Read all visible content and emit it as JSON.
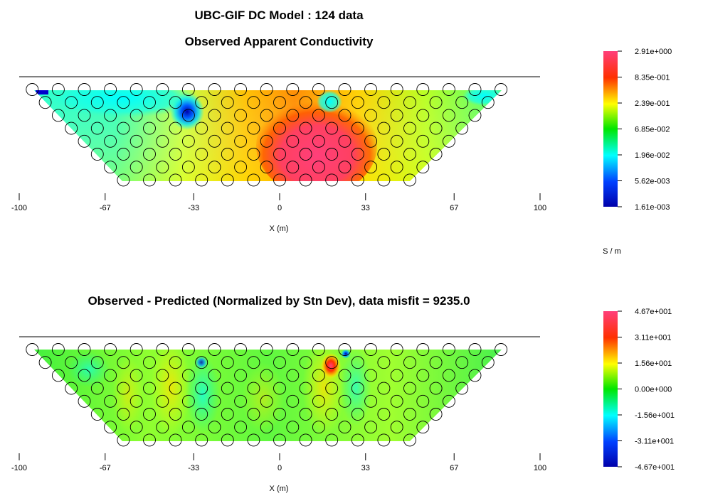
{
  "header": {
    "title": "UBC-GIF DC Model : 124 data"
  },
  "chart_data": [
    {
      "type": "heatmap",
      "title": "Observed Apparent Conductivity",
      "xlabel": "X (m)",
      "xlim": [
        -100,
        100
      ],
      "xticks": [
        -100,
        -67,
        -33,
        0,
        33,
        67,
        100
      ],
      "xtick_labels": [
        "-100",
        "-67",
        "-33",
        "0",
        "33",
        "67",
        "100"
      ],
      "electrodes_x": [
        -95,
        -85,
        -75,
        -65,
        -55,
        -45,
        -35,
        -25,
        -15,
        -5,
        5,
        15,
        25,
        35,
        45,
        55,
        65,
        75,
        85
      ],
      "background_value": "2.39e-001",
      "features": [
        {
          "name": "conductive-body",
          "x": [
            -5,
            35
          ],
          "value": "2.91e+000"
        },
        {
          "name": "resistive-left",
          "x": [
            -95,
            -55
          ],
          "value": "1.96e-002"
        },
        {
          "name": "resistive-anomaly",
          "x": [
            -35,
            -35
          ],
          "value": "1.61e-003"
        }
      ],
      "colorbar": {
        "labels": [
          "2.91e+000",
          "8.35e-001",
          "2.39e-001",
          "6.85e-002",
          "1.96e-002",
          "5.62e-003",
          "1.61e-003"
        ],
        "colors": [
          "#ff3f7a",
          "#ff3000",
          "#ffff00",
          "#00e600",
          "#00ffff",
          "#0040ff",
          "#0000aa"
        ],
        "unit": "S / m"
      }
    },
    {
      "type": "heatmap",
      "title": "Observed - Predicted (Normalized by Stn Dev), data misfit = 9235.0",
      "xlabel": "X (m)",
      "xlim": [
        -100,
        100
      ],
      "xticks": [
        -100,
        -67,
        -33,
        0,
        33,
        67,
        100
      ],
      "xtick_labels": [
        "-100",
        "-67",
        "-33",
        "0",
        "33",
        "67",
        "100"
      ],
      "electrodes_x": [
        -95,
        -85,
        -75,
        -65,
        -55,
        -45,
        -35,
        -25,
        -15,
        -5,
        5,
        15,
        25,
        35,
        45,
        55,
        65,
        75,
        85
      ],
      "background_value": "0.00e+000",
      "features": [
        {
          "name": "positive-misfit",
          "x": [
            20,
            20
          ],
          "value": "4.67e+001"
        },
        {
          "name": "negative-misfit",
          "x": [
            25,
            25
          ],
          "value": "-4.67e+001"
        }
      ],
      "colorbar": {
        "labels": [
          "4.67e+001",
          "3.11e+001",
          "1.56e+001",
          "0.00e+000",
          "-1.56e+001",
          "-3.11e+001",
          "-4.67e+001"
        ],
        "colors": [
          "#ff3f7a",
          "#ff3000",
          "#ffff00",
          "#00e600",
          "#00ffff",
          "#0040ff",
          "#0000aa"
        ]
      }
    }
  ]
}
